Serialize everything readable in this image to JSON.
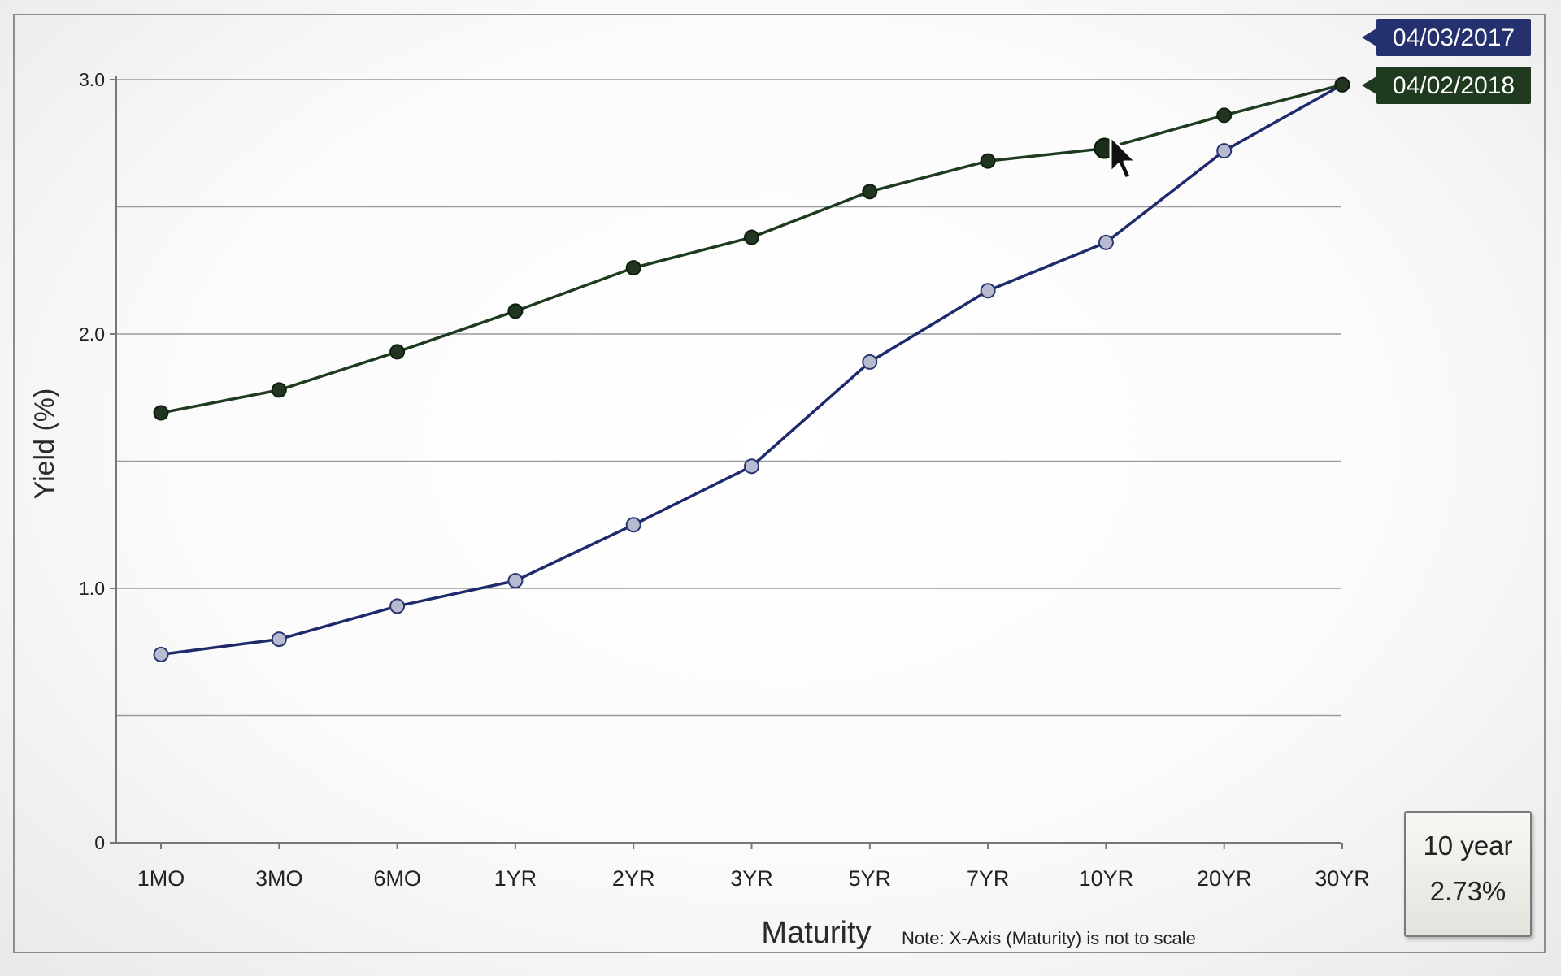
{
  "chart_data": {
    "type": "line",
    "categories": [
      "1MO",
      "3MO",
      "6MO",
      "1YR",
      "2YR",
      "3YR",
      "5YR",
      "7YR",
      "10YR",
      "20YR",
      "30YR"
    ],
    "series": [
      {
        "name": "04/02/2018",
        "color": "#1f3b1f",
        "values": [
          1.69,
          1.78,
          1.93,
          2.09,
          2.26,
          2.38,
          2.56,
          2.68,
          2.73,
          2.86,
          2.98
        ]
      },
      {
        "name": "04/03/2017",
        "color": "#1e2a6b",
        "values": [
          0.74,
          0.8,
          0.93,
          1.03,
          1.25,
          1.48,
          1.89,
          2.17,
          2.36,
          2.72,
          2.98
        ]
      }
    ],
    "xlabel": "Maturity",
    "ylabel": "Yield (%)",
    "ylim": [
      0,
      3.0
    ],
    "yticks": [
      "0",
      "1.0",
      "2.0",
      "3.0"
    ],
    "grid": true,
    "note": "Note: X-Axis (Maturity) is not to scale"
  },
  "readout": {
    "label": "10 year",
    "value": "2.73%"
  }
}
